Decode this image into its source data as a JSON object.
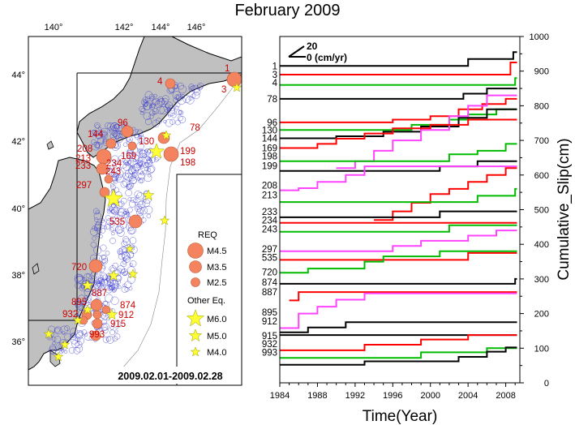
{
  "title": "February 2009",
  "map": {
    "lon_ticks": [
      "140°",
      "142°",
      "144°",
      "146°"
    ],
    "lat_ticks": [
      "44°",
      "42°",
      "40°",
      "38°",
      "36°"
    ],
    "date_range": "2009.02.01-2009.02.28",
    "legend": {
      "req_title": "REQ",
      "req_items": [
        "M4.5",
        "M3.5",
        "M2.5"
      ],
      "other_title": "Other Eq.",
      "other_items": [
        "M6.0",
        "M5.0",
        "M4.0"
      ]
    },
    "repeater_labels": [
      "1",
      "3",
      "4",
      "78",
      "96",
      "130",
      "144",
      "169",
      "199",
      "198",
      "208",
      "213",
      "233",
      "234",
      "243",
      "297",
      "535",
      "720",
      "874",
      "887",
      "895",
      "912",
      "915",
      "932",
      "993"
    ],
    "colors": {
      "land": "#c0c0c0",
      "req": "#f4845f",
      "other": "#ffff33",
      "aftershock": "#3333cc"
    }
  },
  "chart_data": {
    "type": "line",
    "xlabel": "Time(Year)",
    "ylabel": "Cumulative_Slip(cm)",
    "xlim": [
      1984,
      2009.5
    ],
    "ylim": [
      0,
      1000
    ],
    "x_ticks": [
      1984,
      1988,
      1992,
      1996,
      2000,
      2004,
      2008
    ],
    "y_ticks": [
      0,
      100,
      200,
      300,
      400,
      500,
      600,
      700,
      800,
      900,
      1000
    ],
    "scale_legend": {
      "top": "20",
      "bottom": "0 (cm/yr)"
    },
    "colors": {
      "black": "#000000",
      "red": "#ff0000",
      "green": "#00bb00",
      "magenta": "#ff44ff"
    },
    "series": [
      {
        "label": "1",
        "color": "black",
        "steps": [
          [
            1984,
            915
          ],
          [
            2004,
            915
          ],
          [
            2004,
            935
          ],
          [
            2008.8,
            935
          ],
          [
            2008.8,
            955
          ],
          [
            2009.2,
            955
          ]
        ]
      },
      {
        "label": "3",
        "color": "red",
        "steps": [
          [
            1984,
            890
          ],
          [
            2008.5,
            890
          ],
          [
            2008.5,
            925
          ],
          [
            2009.2,
            925
          ]
        ]
      },
      {
        "label": "4",
        "color": "green",
        "steps": [
          [
            1984,
            860
          ],
          [
            2009,
            860
          ],
          [
            2009,
            880
          ],
          [
            2009.2,
            880
          ]
        ]
      },
      {
        "label": "78",
        "color": "black",
        "steps": [
          [
            1984,
            820
          ],
          [
            2003.5,
            820
          ],
          [
            2003.5,
            835
          ],
          [
            2006,
            835
          ],
          [
            2006,
            850
          ],
          [
            2009.2,
            850
          ]
        ]
      },
      {
        "label": "96",
        "color": "red",
        "steps": [
          [
            1984,
            752
          ],
          [
            1996,
            752
          ],
          [
            1996,
            760
          ],
          [
            2000,
            760
          ],
          [
            2000,
            770
          ],
          [
            2003,
            770
          ],
          [
            2003,
            790
          ],
          [
            2005.5,
            790
          ],
          [
            2005.5,
            805
          ],
          [
            2008,
            805
          ],
          [
            2008,
            820
          ],
          [
            2009.2,
            820
          ]
        ]
      },
      {
        "label": "130",
        "color": "green",
        "steps": [
          [
            1984,
            730
          ],
          [
            1998,
            730
          ],
          [
            1998,
            745
          ],
          [
            2002,
            745
          ],
          [
            2002,
            760
          ],
          [
            2004,
            760
          ],
          [
            2004,
            775
          ],
          [
            2007,
            775
          ],
          [
            2007,
            790
          ],
          [
            2009.2,
            790
          ]
        ]
      },
      {
        "label": "144",
        "color": "black",
        "steps": [
          [
            1984,
            706
          ],
          [
            1990,
            706
          ],
          [
            1990,
            712
          ],
          [
            1995,
            712
          ],
          [
            1995,
            725
          ],
          [
            1999,
            725
          ],
          [
            1999,
            740
          ],
          [
            2003,
            740
          ],
          [
            2003,
            765
          ],
          [
            2006,
            765
          ],
          [
            2006,
            790
          ],
          [
            2009.2,
            790
          ]
        ]
      },
      {
        "label": "magenta-1",
        "color": "magenta",
        "steps": [
          [
            1990,
            620
          ],
          [
            1992,
            620
          ],
          [
            1992,
            640
          ],
          [
            1994,
            640
          ],
          [
            1994,
            670
          ],
          [
            1996,
            670
          ],
          [
            1996,
            700
          ],
          [
            1999,
            700
          ],
          [
            1999,
            730
          ],
          [
            2002,
            730
          ],
          [
            2002,
            770
          ],
          [
            2004,
            770
          ],
          [
            2004,
            800
          ],
          [
            2006,
            800
          ],
          [
            2006,
            830
          ],
          [
            2009.2,
            830
          ]
        ]
      },
      {
        "label": "169",
        "color": "red",
        "steps": [
          [
            1984,
            678
          ],
          [
            1988,
            678
          ],
          [
            1988,
            690
          ],
          [
            1990,
            690
          ],
          [
            1990,
            705
          ],
          [
            1993,
            705
          ],
          [
            1993,
            720
          ],
          [
            1996,
            720
          ],
          [
            1996,
            735
          ],
          [
            2000,
            735
          ],
          [
            2000,
            745
          ],
          [
            2004,
            745
          ],
          [
            2004,
            760
          ],
          [
            2009.2,
            760
          ]
        ]
      },
      {
        "label": "198",
        "color": "green",
        "steps": [
          [
            1984,
            640
          ],
          [
            2002,
            640
          ],
          [
            2002,
            660
          ],
          [
            2005,
            660
          ],
          [
            2005,
            670
          ],
          [
            2008,
            670
          ],
          [
            2008,
            690
          ],
          [
            2009.2,
            690
          ]
        ]
      },
      {
        "label": "199",
        "color": "black",
        "steps": [
          [
            1984,
            612
          ],
          [
            2001,
            612
          ],
          [
            2001,
            625
          ],
          [
            2005,
            625
          ],
          [
            2005,
            640
          ],
          [
            2009.2,
            640
          ]
        ]
      },
      {
        "label": "208",
        "color": "magenta",
        "steps": [
          [
            1984,
            556
          ],
          [
            1986,
            556
          ],
          [
            1986,
            562
          ],
          [
            1988,
            562
          ],
          [
            1988,
            580
          ],
          [
            1991,
            580
          ],
          [
            1991,
            600
          ],
          [
            1993,
            600
          ],
          [
            1993,
            625
          ],
          [
            2009.2,
            625
          ]
        ]
      },
      {
        "label": "red-2",
        "color": "red",
        "steps": [
          [
            1994,
            470
          ],
          [
            1996,
            470
          ],
          [
            1996,
            495
          ],
          [
            1998,
            495
          ],
          [
            1998,
            520
          ],
          [
            2000,
            520
          ],
          [
            2000,
            545
          ],
          [
            2002,
            545
          ],
          [
            2002,
            560
          ],
          [
            2004,
            560
          ],
          [
            2004,
            580
          ],
          [
            2006,
            580
          ],
          [
            2006,
            600
          ],
          [
            2008,
            600
          ],
          [
            2008,
            620
          ],
          [
            2009.2,
            620
          ]
        ]
      },
      {
        "label": "213",
        "color": "green",
        "steps": [
          [
            1984,
            522
          ],
          [
            2005,
            522
          ],
          [
            2005,
            540
          ],
          [
            2009,
            540
          ],
          [
            2009,
            560
          ],
          [
            2009.2,
            560
          ]
        ]
      },
      {
        "label": "233",
        "color": "black",
        "steps": [
          [
            1984,
            478
          ],
          [
            2001,
            478
          ],
          [
            2001,
            495
          ],
          [
            2009.2,
            495
          ]
        ]
      },
      {
        "label": "234",
        "color": "red",
        "steps": [
          [
            1984,
            462
          ],
          [
            2009.2,
            462
          ]
        ]
      },
      {
        "label": "243",
        "color": "green",
        "steps": [
          [
            1984,
            436
          ],
          [
            2002,
            436
          ],
          [
            2002,
            455
          ],
          [
            2009.2,
            455
          ]
        ]
      },
      {
        "label": "297",
        "color": "magenta",
        "steps": [
          [
            1984,
            380
          ],
          [
            1996,
            380
          ],
          [
            1996,
            395
          ],
          [
            1999,
            395
          ],
          [
            1999,
            410
          ],
          [
            2004,
            410
          ],
          [
            2004,
            425
          ],
          [
            2007,
            425
          ],
          [
            2007,
            440
          ],
          [
            2009.2,
            440
          ]
        ]
      },
      {
        "label": "535",
        "color": "red",
        "steps": [
          [
            1984,
            355
          ],
          [
            2004,
            355
          ],
          [
            2004,
            375
          ],
          [
            2009.2,
            375
          ]
        ]
      },
      {
        "label": "720",
        "color": "green",
        "steps": [
          [
            1984,
            318
          ],
          [
            1987,
            318
          ],
          [
            1987,
            330
          ],
          [
            1993,
            330
          ],
          [
            1993,
            350
          ],
          [
            1995,
            350
          ],
          [
            1995,
            365
          ],
          [
            2001,
            365
          ],
          [
            2001,
            380
          ],
          [
            2009.2,
            380
          ]
        ]
      },
      {
        "label": "874",
        "color": "black",
        "steps": [
          [
            1984,
            286
          ],
          [
            2009,
            286
          ],
          [
            2009,
            300
          ],
          [
            2009.2,
            300
          ]
        ]
      },
      {
        "label": "red-3",
        "color": "red",
        "steps": [
          [
            1985,
            238
          ],
          [
            1986,
            238
          ],
          [
            1986,
            262
          ],
          [
            2009.2,
            262
          ]
        ]
      },
      {
        "label": "887",
        "color": "magenta",
        "steps": [
          [
            1984,
            158
          ],
          [
            1986,
            158
          ],
          [
            1986,
            200
          ],
          [
            1988,
            200
          ],
          [
            1988,
            220
          ],
          [
            1990,
            220
          ],
          [
            1990,
            240
          ],
          [
            1993,
            240
          ],
          [
            1993,
            258
          ],
          [
            2009.2,
            258
          ]
        ]
      },
      {
        "label": "895",
        "color": "black",
        "steps": [
          [
            1984,
            146
          ],
          [
            1987,
            146
          ],
          [
            1987,
            160
          ],
          [
            1991,
            160
          ],
          [
            1991,
            175
          ],
          [
            2009.2,
            175
          ]
        ]
      },
      {
        "label": "912",
        "color": "black",
        "steps": [
          [
            1984,
            138
          ],
          [
            2009.2,
            138
          ]
        ]
      },
      {
        "label": "915",
        "color": "red",
        "steps": [
          [
            1984,
            94
          ],
          [
            1993,
            94
          ],
          [
            1993,
            110
          ],
          [
            1999,
            110
          ],
          [
            1999,
            125
          ],
          [
            2004,
            125
          ],
          [
            2004,
            138
          ],
          [
            2009.2,
            138
          ]
        ]
      },
      {
        "label": "932",
        "color": "green",
        "steps": [
          [
            1984,
            72
          ],
          [
            1999,
            72
          ],
          [
            1999,
            88
          ],
          [
            2006,
            88
          ],
          [
            2006,
            100
          ],
          [
            2009.2,
            100
          ]
        ]
      },
      {
        "label": "993",
        "color": "black",
        "steps": [
          [
            1984,
            52
          ],
          [
            1993,
            52
          ],
          [
            1993,
            62
          ],
          [
            2003,
            62
          ],
          [
            2003,
            75
          ],
          [
            2006,
            75
          ],
          [
            2006,
            90
          ],
          [
            2008,
            90
          ],
          [
            2008,
            102
          ],
          [
            2009.2,
            102
          ]
        ]
      }
    ],
    "left_labels": [
      {
        "text": "1",
        "y": 915
      },
      {
        "text": "3",
        "y": 890
      },
      {
        "text": "4",
        "y": 866
      },
      {
        "text": "78",
        "y": 820
      },
      {
        "text": "96",
        "y": 752
      },
      {
        "text": "130",
        "y": 730
      },
      {
        "text": "144",
        "y": 706
      },
      {
        "text": "169",
        "y": 678
      },
      {
        "text": "198",
        "y": 655
      },
      {
        "text": "199",
        "y": 626
      },
      {
        "text": "208",
        "y": 570
      },
      {
        "text": "213",
        "y": 542
      },
      {
        "text": "233",
        "y": 494
      },
      {
        "text": "234",
        "y": 470
      },
      {
        "text": "243",
        "y": 444
      },
      {
        "text": "297",
        "y": 386
      },
      {
        "text": "535",
        "y": 362
      },
      {
        "text": "720",
        "y": 320
      },
      {
        "text": "874",
        "y": 290
      },
      {
        "text": "887",
        "y": 262
      },
      {
        "text": "895",
        "y": 204
      },
      {
        "text": "912",
        "y": 178
      },
      {
        "text": "915",
        "y": 136
      },
      {
        "text": "932",
        "y": 112
      },
      {
        "text": "993",
        "y": 88
      }
    ]
  }
}
